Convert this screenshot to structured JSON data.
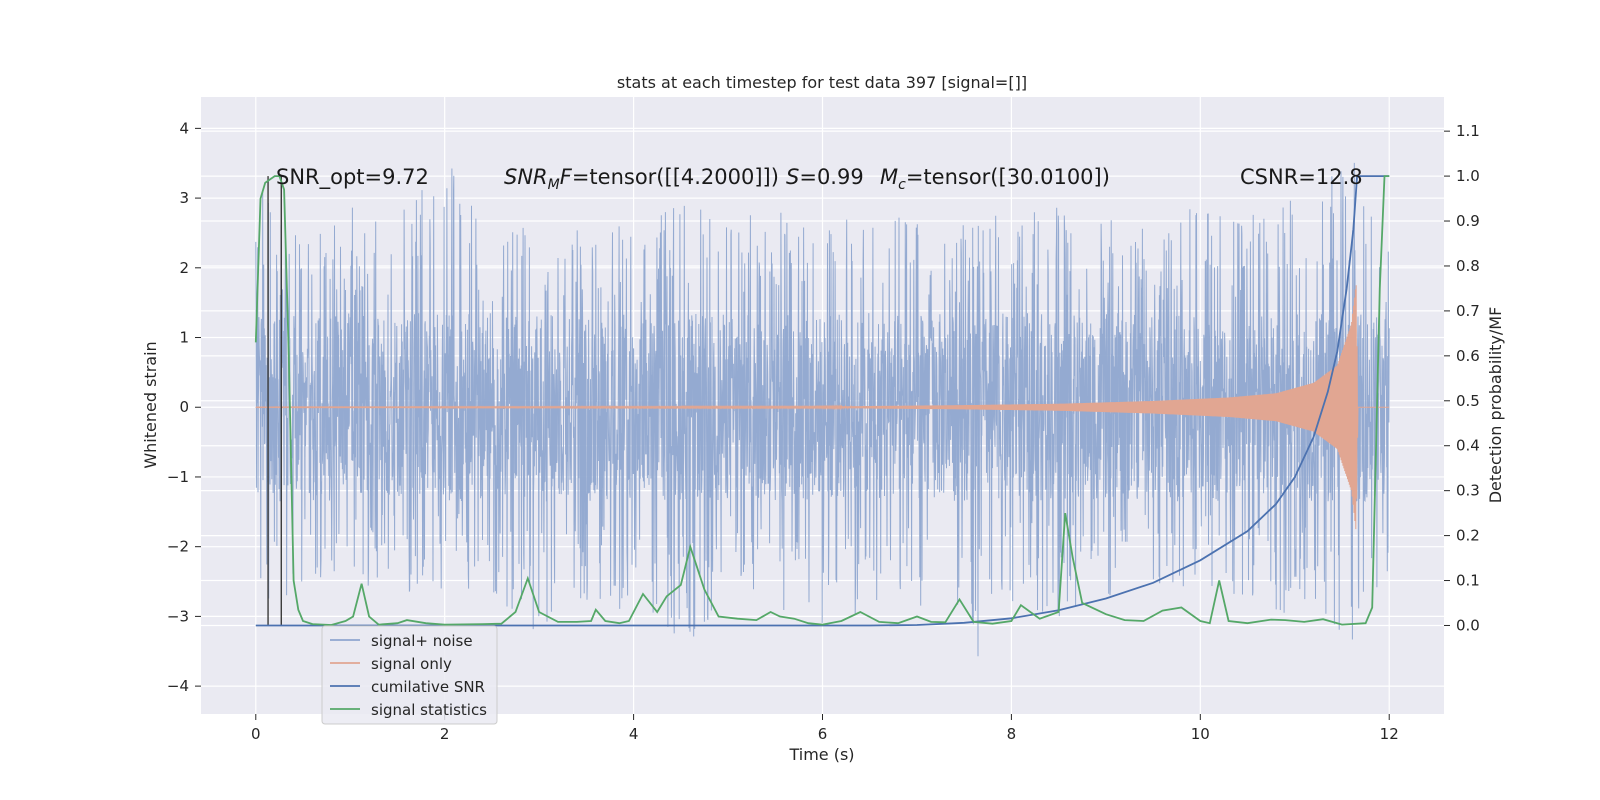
{
  "chart_data": {
    "type": "line",
    "title": "stats at each timestep for test data 397 [signal=[]]",
    "xlabel": "Time (s)",
    "ylabel_left": "Whitened strain",
    "ylabel_right": "Detection probability/MF",
    "xlim": [
      -0.58,
      12.58
    ],
    "ylim_left": [
      -4.4,
      4.45
    ],
    "ylim_right": [
      -0.197,
      1.176
    ],
    "xticks": [
      0,
      2,
      4,
      6,
      8,
      10,
      12
    ],
    "yticks_left": [
      -4,
      -3,
      -2,
      -1,
      0,
      1,
      2,
      3,
      4
    ],
    "yticks_right": [
      0.0,
      0.1,
      0.2,
      0.3,
      0.4,
      0.5,
      0.6,
      0.7,
      0.8,
      0.9,
      1.0,
      1.1
    ],
    "grid": true,
    "legend_position": "lower-left",
    "annotations": {
      "snr_opt": "SNR_opt=9.72",
      "snr_mf_var": "SNR",
      "snr_mf_sub": "M",
      "snr_mf_var2": "F",
      "snr_mf_value": "=tensor([[4.2000]])",
      "s_var": "S",
      "s_value": "=0.99",
      "mc_var": "M",
      "mc_sub": "c",
      "mc_value": "=tensor([30.0100])",
      "csnr": "CSNR=12.8"
    },
    "markers_x": [
      0.13,
      0.27
    ],
    "series": [
      {
        "name": "signal+ noise",
        "color": "#8fa6cf",
        "axis": "left",
        "envelope_typical": 1.35,
        "envelope_peak": [
          [
            0.05,
            3.4
          ],
          [
            0.3,
            2.8
          ],
          [
            0.6,
            2.7
          ],
          [
            1.0,
            2.9
          ],
          [
            1.5,
            2.8
          ],
          [
            1.95,
            4.1
          ],
          [
            2.4,
            2.6
          ],
          [
            2.8,
            2.9
          ],
          [
            3.2,
            2.7
          ],
          [
            3.6,
            2.8
          ],
          [
            4.0,
            2.6
          ],
          [
            4.5,
            3.0
          ],
          [
            5.0,
            2.7
          ],
          [
            5.5,
            2.9
          ],
          [
            6.0,
            2.8
          ],
          [
            6.5,
            2.7
          ],
          [
            7.0,
            2.8
          ],
          [
            7.5,
            2.7
          ],
          [
            8.0,
            2.8
          ],
          [
            8.5,
            2.9
          ],
          [
            9.0,
            2.7
          ],
          [
            9.5,
            2.7
          ],
          [
            10.0,
            2.9
          ],
          [
            10.5,
            2.8
          ],
          [
            11.0,
            3.0
          ],
          [
            11.45,
            3.75
          ],
          [
            11.7,
            3.5
          ],
          [
            11.95,
            2.3
          ]
        ],
        "trough": [
          [
            0.05,
            -2.6
          ],
          [
            0.3,
            -3.2
          ],
          [
            0.6,
            -2.5
          ],
          [
            1.0,
            -2.7
          ],
          [
            1.5,
            -2.8
          ],
          [
            2.0,
            -2.6
          ],
          [
            2.5,
            -2.7
          ],
          [
            3.0,
            -3.3
          ],
          [
            3.5,
            -2.8
          ],
          [
            4.0,
            -3.0
          ],
          [
            4.6,
            -3.4
          ],
          [
            5.0,
            -2.7
          ],
          [
            5.5,
            -2.9
          ],
          [
            5.9,
            -3.3
          ],
          [
            6.5,
            -2.9
          ],
          [
            7.0,
            -2.8
          ],
          [
            7.5,
            -3.85
          ],
          [
            8.0,
            -2.9
          ],
          [
            8.5,
            -3.1
          ],
          [
            9.0,
            -2.8
          ],
          [
            9.5,
            -2.7
          ],
          [
            10.0,
            -2.6
          ],
          [
            10.5,
            -2.9
          ],
          [
            11.0,
            -3.0
          ],
          [
            11.5,
            -3.5
          ],
          [
            11.8,
            -3.4
          ],
          [
            11.95,
            -2.4
          ]
        ]
      },
      {
        "name": "signal only",
        "color": "#e1a692",
        "axis": "left",
        "amplitude": [
          [
            0.0,
            0.004
          ],
          [
            6.0,
            0.01
          ],
          [
            7.5,
            0.03
          ],
          [
            8.5,
            0.05
          ],
          [
            9.5,
            0.09
          ],
          [
            10.3,
            0.14
          ],
          [
            10.8,
            0.2
          ],
          [
            11.2,
            0.35
          ],
          [
            11.45,
            0.6
          ],
          [
            11.6,
            1.2
          ],
          [
            11.65,
            1.8
          ],
          [
            11.67,
            0.0
          ]
        ]
      },
      {
        "name": "cumilative SNR",
        "color": "#4c72b0",
        "axis": "right",
        "points": [
          [
            0.0,
            0.0
          ],
          [
            6.5,
            0.0
          ],
          [
            7.0,
            0.001
          ],
          [
            7.5,
            0.006
          ],
          [
            8.0,
            0.016
          ],
          [
            8.5,
            0.034
          ],
          [
            9.0,
            0.06
          ],
          [
            9.5,
            0.095
          ],
          [
            10.0,
            0.145
          ],
          [
            10.5,
            0.21
          ],
          [
            10.8,
            0.27
          ],
          [
            11.0,
            0.33
          ],
          [
            11.2,
            0.42
          ],
          [
            11.35,
            0.52
          ],
          [
            11.45,
            0.61
          ],
          [
            11.55,
            0.75
          ],
          [
            11.62,
            0.88
          ],
          [
            11.66,
            1.0
          ],
          [
            12.0,
            1.0
          ]
        ]
      },
      {
        "name": "signal statistics",
        "color": "#55a868",
        "axis": "right",
        "points": [
          [
            0.0,
            0.63
          ],
          [
            0.05,
            0.95
          ],
          [
            0.1,
            0.985
          ],
          [
            0.2,
            1.0
          ],
          [
            0.25,
            1.0
          ],
          [
            0.3,
            0.97
          ],
          [
            0.35,
            0.6
          ],
          [
            0.4,
            0.1
          ],
          [
            0.45,
            0.035
          ],
          [
            0.5,
            0.01
          ],
          [
            0.6,
            0.003
          ],
          [
            0.8,
            0.001
          ],
          [
            0.95,
            0.01
          ],
          [
            1.03,
            0.02
          ],
          [
            1.12,
            0.093
          ],
          [
            1.2,
            0.02
          ],
          [
            1.3,
            0.002
          ],
          [
            1.5,
            0.005
          ],
          [
            1.6,
            0.012
          ],
          [
            1.8,
            0.005
          ],
          [
            2.0,
            0.002
          ],
          [
            2.4,
            0.003
          ],
          [
            2.6,
            0.004
          ],
          [
            2.75,
            0.03
          ],
          [
            2.88,
            0.105
          ],
          [
            3.0,
            0.03
          ],
          [
            3.2,
            0.008
          ],
          [
            3.4,
            0.008
          ],
          [
            3.55,
            0.01
          ],
          [
            3.6,
            0.035
          ],
          [
            3.7,
            0.01
          ],
          [
            3.85,
            0.005
          ],
          [
            3.95,
            0.01
          ],
          [
            4.1,
            0.07
          ],
          [
            4.25,
            0.03
          ],
          [
            4.35,
            0.065
          ],
          [
            4.5,
            0.09
          ],
          [
            4.6,
            0.175
          ],
          [
            4.75,
            0.08
          ],
          [
            4.9,
            0.02
          ],
          [
            5.1,
            0.015
          ],
          [
            5.3,
            0.012
          ],
          [
            5.45,
            0.03
          ],
          [
            5.55,
            0.02
          ],
          [
            5.7,
            0.015
          ],
          [
            5.85,
            0.005
          ],
          [
            6.0,
            0.002
          ],
          [
            6.2,
            0.01
          ],
          [
            6.4,
            0.03
          ],
          [
            6.6,
            0.008
          ],
          [
            6.8,
            0.005
          ],
          [
            7.0,
            0.02
          ],
          [
            7.15,
            0.008
          ],
          [
            7.3,
            0.007
          ],
          [
            7.45,
            0.058
          ],
          [
            7.6,
            0.008
          ],
          [
            7.8,
            0.004
          ],
          [
            8.0,
            0.01
          ],
          [
            8.1,
            0.045
          ],
          [
            8.3,
            0.015
          ],
          [
            8.5,
            0.03
          ],
          [
            8.57,
            0.25
          ],
          [
            8.65,
            0.15
          ],
          [
            8.75,
            0.05
          ],
          [
            9.0,
            0.025
          ],
          [
            9.2,
            0.012
          ],
          [
            9.4,
            0.01
          ],
          [
            9.6,
            0.033
          ],
          [
            9.8,
            0.04
          ],
          [
            10.0,
            0.01
          ],
          [
            10.1,
            0.005
          ],
          [
            10.2,
            0.1
          ],
          [
            10.3,
            0.01
          ],
          [
            10.5,
            0.005
          ],
          [
            10.75,
            0.013
          ],
          [
            10.9,
            0.012
          ],
          [
            11.1,
            0.008
          ],
          [
            11.3,
            0.014
          ],
          [
            11.5,
            0.002
          ],
          [
            11.75,
            0.005
          ],
          [
            11.82,
            0.04
          ],
          [
            11.85,
            0.3
          ],
          [
            11.9,
            0.75
          ],
          [
            11.95,
            1.0
          ],
          [
            12.0,
            1.0
          ]
        ]
      }
    ]
  }
}
